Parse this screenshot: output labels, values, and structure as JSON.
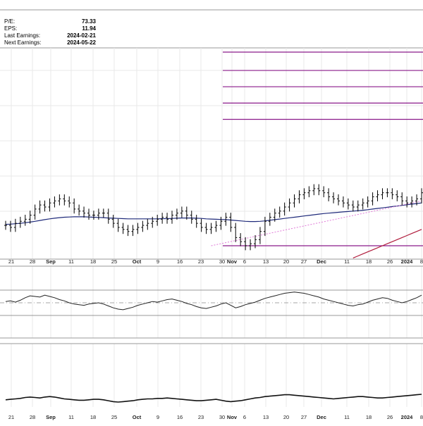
{
  "info": {
    "rows": [
      {
        "label": "P/E:",
        "value": "73.33"
      },
      {
        "label": "EPS:",
        "value": "11.94"
      },
      {
        "label": "Last Earnings:",
        "value": "2024-02-21"
      },
      {
        "label": "Next Earnings:",
        "value": "2024-05-22"
      }
    ]
  },
  "colors": {
    "price": "#000000",
    "ma_short": "#1f2a7a",
    "ma_long": "#b01c3c",
    "trendline": "#e07ad8",
    "fib": "#8a1a8a",
    "grid": "#e8e8e8",
    "border": "#9a9a9a"
  },
  "chart_data": {
    "type": "line",
    "x_ticks": [
      {
        "label": "21",
        "month": false
      },
      {
        "label": "28",
        "month": false
      },
      {
        "label": "Sep",
        "month": true
      },
      {
        "label": "11",
        "month": false
      },
      {
        "label": "18",
        "month": false
      },
      {
        "label": "25",
        "month": false
      },
      {
        "label": "Oct",
        "month": true
      },
      {
        "label": "9",
        "month": false
      },
      {
        "label": "16",
        "month": false
      },
      {
        "label": "23",
        "month": false
      },
      {
        "label": "30",
        "month": false
      },
      {
        "label": "Nov",
        "month": true
      },
      {
        "label": "6",
        "month": false
      },
      {
        "label": "13",
        "month": false
      },
      {
        "label": "20",
        "month": false
      },
      {
        "label": "27",
        "month": false
      },
      {
        "label": "Dec",
        "month": true
      },
      {
        "label": "11",
        "month": false
      },
      {
        "label": "18",
        "month": false
      },
      {
        "label": "26",
        "month": false
      },
      {
        "label": "2024",
        "month": true
      },
      {
        "label": "8",
        "month": false
      }
    ],
    "price_closes": [
      50,
      49,
      51,
      52,
      53,
      55,
      58,
      60,
      59,
      61,
      62,
      63,
      62,
      61,
      58,
      57,
      56,
      55,
      55,
      56,
      56,
      53,
      51,
      49,
      48,
      47,
      48,
      49,
      50,
      51,
      52,
      53,
      54,
      53,
      55,
      56,
      57,
      55,
      53,
      51,
      49,
      48,
      49,
      50,
      52,
      54,
      49,
      44,
      42,
      40,
      41,
      43,
      47,
      52,
      54,
      56,
      57,
      59,
      61,
      63,
      65,
      66,
      67,
      68,
      67,
      66,
      64,
      63,
      62,
      61,
      60,
      59,
      60,
      61,
      62,
      64,
      65,
      66,
      66,
      65,
      64,
      62,
      61,
      62,
      63,
      66
    ],
    "ma_short": [
      50.5,
      50.6,
      50.8,
      51.0,
      51.3,
      51.6,
      52.0,
      52.4,
      52.8,
      53.2,
      53.5,
      53.8,
      54.0,
      54.1,
      54.2,
      54.2,
      54.2,
      54.1,
      54.0,
      53.9,
      53.8,
      53.6,
      53.5,
      53.4,
      53.3,
      53.2,
      53.2,
      53.2,
      53.2,
      53.2,
      53.2,
      53.2,
      53.3,
      53.3,
      53.4,
      53.5,
      53.6,
      53.6,
      53.6,
      53.5,
      53.4,
      53.2,
      53.1,
      53.0,
      52.9,
      52.8,
      52.6,
      52.4,
      52.2,
      52.0,
      51.9,
      51.9,
      52.0,
      52.2,
      52.5,
      52.8,
      53.1,
      53.4,
      53.7,
      54.0,
      54.3,
      54.6,
      54.9,
      55.2,
      55.5,
      55.8,
      56.0,
      56.2,
      56.4,
      56.6,
      56.8,
      57.0,
      57.2,
      57.4,
      57.7,
      58.0,
      58.3,
      58.6,
      58.9,
      59.2,
      59.5,
      59.8,
      60.1,
      60.4,
      60.7,
      61.0
    ],
    "ma_long": [
      34.0,
      35.0,
      36.0,
      37.0,
      38.0,
      39.0,
      40.0,
      41.0,
      42.0,
      43.0,
      44.0,
      45.0,
      46.0,
      47.0,
      48.0
    ],
    "trendline": [
      [
        42,
        40
      ],
      [
        85,
        62
      ]
    ],
    "horizontal_levels": [
      40,
      102,
      110,
      118,
      126,
      135
    ],
    "rsi": [
      52,
      53,
      51,
      54,
      58,
      61,
      60,
      59,
      62,
      60,
      58,
      55,
      53,
      50,
      48,
      47,
      46,
      48,
      49,
      50,
      48,
      45,
      42,
      40,
      39,
      41,
      43,
      46,
      48,
      50,
      52,
      51,
      53,
      55,
      56,
      54,
      52,
      49,
      47,
      44,
      42,
      41,
      43,
      45,
      48,
      50,
      46,
      42,
      44,
      47,
      49,
      51,
      54,
      57,
      59,
      61,
      63,
      65,
      66,
      67,
      66,
      65,
      63,
      61,
      59,
      56,
      54,
      52,
      50,
      48,
      46,
      45,
      47,
      48,
      51,
      54,
      56,
      58,
      57,
      54,
      52,
      50,
      52,
      55,
      58,
      62
    ],
    "bottom_indicator": [
      50,
      51,
      52,
      53,
      55,
      56,
      55,
      54,
      56,
      57,
      56,
      54,
      52,
      51,
      50,
      49,
      49,
      50,
      51,
      51,
      50,
      48,
      46,
      45,
      46,
      47,
      48,
      50,
      51,
      52,
      52,
      53,
      53,
      54,
      53,
      52,
      51,
      50,
      49,
      48,
      48,
      49,
      50,
      51,
      49,
      47,
      46,
      47,
      48,
      50,
      52,
      54,
      55,
      57,
      58,
      59,
      60,
      61,
      61,
      60,
      59,
      58,
      57,
      56,
      55,
      54,
      53,
      52,
      53,
      54,
      55,
      56,
      57,
      57,
      56,
      55,
      54,
      54,
      55,
      56,
      57,
      58,
      59,
      60,
      61,
      62
    ]
  }
}
